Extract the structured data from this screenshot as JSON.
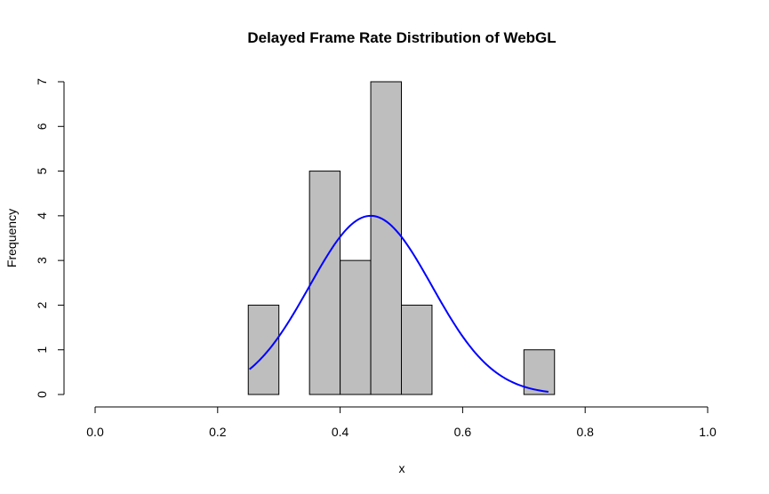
{
  "chart_data": {
    "type": "bar",
    "title": "Delayed Frame Rate Distribution of WebGL",
    "xlabel": "x",
    "ylabel": "Frequency",
    "xlim": [
      0.0,
      1.0
    ],
    "ylim": [
      0,
      7
    ],
    "x_ticks": [
      "0.0",
      "0.2",
      "0.4",
      "0.6",
      "0.8",
      "1.0"
    ],
    "y_ticks": [
      "0",
      "1",
      "2",
      "3",
      "4",
      "5",
      "6",
      "7"
    ],
    "bin_width": 0.05,
    "bins": [
      {
        "start": 0.25,
        "end": 0.3,
        "count": 2
      },
      {
        "start": 0.3,
        "end": 0.35,
        "count": 0
      },
      {
        "start": 0.35,
        "end": 0.4,
        "count": 5
      },
      {
        "start": 0.4,
        "end": 0.45,
        "count": 3
      },
      {
        "start": 0.45,
        "end": 0.5,
        "count": 7
      },
      {
        "start": 0.5,
        "end": 0.55,
        "count": 2
      },
      {
        "start": 0.55,
        "end": 0.6,
        "count": 0
      },
      {
        "start": 0.6,
        "end": 0.65,
        "count": 0
      },
      {
        "start": 0.65,
        "end": 0.7,
        "count": 0
      },
      {
        "start": 0.7,
        "end": 0.75,
        "count": 1
      }
    ],
    "density_curve": {
      "mean": 0.45,
      "sd": 0.1,
      "peak_frequency": 4.0,
      "x_range": [
        0.252,
        0.74
      ]
    },
    "colors": {
      "bar_fill": "#bebebe",
      "bar_stroke": "#000000",
      "curve": "#0000ff"
    },
    "grid": false
  }
}
